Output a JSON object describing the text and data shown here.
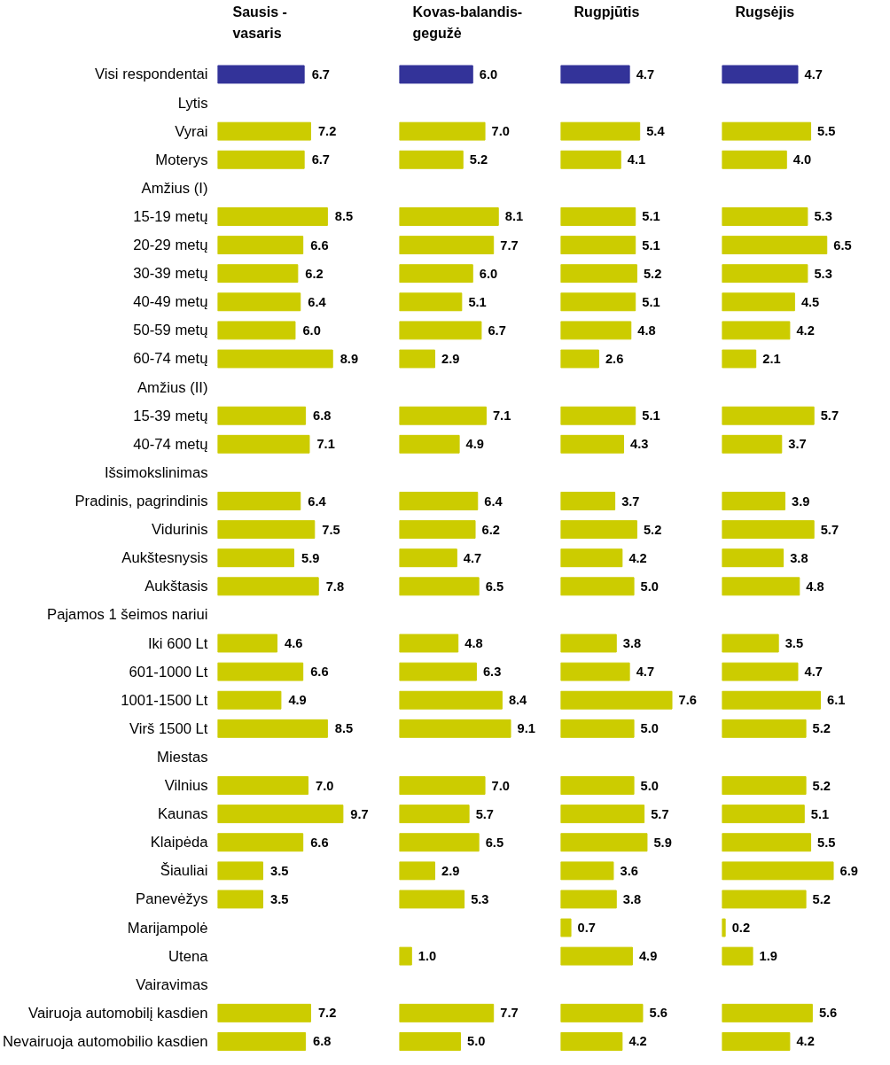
{
  "chart_data": [
    {
      "type": "bar",
      "orientation": "horizontal",
      "title": "Sausis -\nvasaris",
      "grid": false,
      "categories": [
        "Visi respondentai",
        "Lytis",
        "Vyrai",
        "Moterys",
        "Amžius (I)",
        "15-19 metų",
        "20-29 metų",
        "30-39 metų",
        "40-49 metų",
        "50-59 metų",
        "60-74 metų",
        "Amžius (II)",
        "15-39 metų",
        "40-74 metų",
        "Išsimokslinimas",
        "Pradinis, pagrindinis",
        "Vidurinis",
        "Aukštesnysis",
        "Aukštasis",
        "Pajamos 1 šeimos nariui",
        "Iki 600 Lt",
        "601-1000 Lt",
        "1001-1500 Lt",
        "Virš 1500 Lt",
        "Miestas",
        "Vilnius",
        "Kaunas",
        "Klaipėda",
        "Šiauliai",
        "Panevėžys",
        "Marijampolė",
        "Utena",
        "Vairavimas",
        "Vairuoja automobilį kasdien",
        "Nevairuoja automobilio kasdien"
      ],
      "values": [
        6.7,
        null,
        7.2,
        6.7,
        null,
        8.5,
        6.6,
        6.2,
        6.4,
        6.0,
        8.9,
        null,
        6.8,
        7.1,
        null,
        6.4,
        7.5,
        5.9,
        7.8,
        null,
        4.6,
        6.6,
        4.9,
        8.5,
        null,
        7.0,
        9.7,
        6.6,
        3.5,
        3.5,
        null,
        null,
        null,
        7.2,
        6.8
      ],
      "value_labels": [
        "6.7",
        null,
        "7.2",
        "6.7",
        null,
        "8.5",
        "6.6",
        "6.2",
        "6.4",
        "6.0",
        "8.9",
        null,
        "6.8",
        "7.1",
        null,
        "6.4",
        "7.5",
        "5.9",
        "7.8",
        null,
        "4.6",
        "6.6",
        "4.9",
        "8.5",
        null,
        "7.0",
        "9.7",
        "6.6",
        "3.5",
        "3.5",
        null,
        null,
        null,
        "7.2",
        "6.8"
      ],
      "colors": [
        "#333399",
        "#cccc00",
        "#cccc00",
        "#cccc00",
        "#cccc00",
        "#cccc00",
        "#cccc00",
        "#cccc00",
        "#cccc00",
        "#cccc00",
        "#cccc00",
        "#cccc00",
        "#cccc00",
        "#cccc00",
        "#cccc00",
        "#cccc00",
        "#cccc00",
        "#cccc00",
        "#cccc00",
        "#cccc00",
        "#cccc00",
        "#cccc00",
        "#cccc00",
        "#cccc00",
        "#cccc00",
        "#cccc00",
        "#cccc00",
        "#cccc00",
        "#cccc00",
        "#cccc00",
        "#cccc00",
        "#cccc00",
        "#cccc00",
        "#cccc00",
        "#cccc00"
      ]
    },
    {
      "type": "bar",
      "orientation": "horizontal",
      "title": "Kovas-balandis-\ngegužė",
      "grid": false,
      "tick_labels": false,
      "values": [
        6.0,
        null,
        7.0,
        5.2,
        null,
        8.1,
        7.7,
        6.0,
        5.1,
        6.7,
        2.9,
        null,
        7.1,
        4.9,
        null,
        6.4,
        6.2,
        4.7,
        6.5,
        null,
        4.8,
        6.3,
        8.4,
        9.1,
        null,
        7.0,
        5.7,
        6.5,
        2.9,
        5.3,
        null,
        1.0,
        null,
        7.7,
        5.0
      ],
      "value_labels": [
        "6.0",
        null,
        "7.0",
        "5.2",
        null,
        "8.1",
        "7.7",
        "6.0",
        "5.1",
        "6.7",
        "2.9",
        null,
        "7.1",
        "4.9",
        null,
        "6.4",
        "6.2",
        "4.7",
        "6.5",
        null,
        "4.8",
        "6.3",
        "8.4",
        "9.1",
        null,
        "7.0",
        "5.7",
        "6.5",
        "2.9",
        "5.3",
        null,
        "1.0",
        null,
        "7.7",
        "5.0"
      ],
      "colors": [
        "#333399",
        "#cccc00",
        "#cccc00",
        "#cccc00",
        "#cccc00",
        "#cccc00",
        "#cccc00",
        "#cccc00",
        "#cccc00",
        "#cccc00",
        "#cccc00",
        "#cccc00",
        "#cccc00",
        "#cccc00",
        "#cccc00",
        "#cccc00",
        "#cccc00",
        "#cccc00",
        "#cccc00",
        "#cccc00",
        "#cccc00",
        "#cccc00",
        "#cccc00",
        "#cccc00",
        "#cccc00",
        "#cccc00",
        "#cccc00",
        "#cccc00",
        "#cccc00",
        "#cccc00",
        "#cccc00",
        "#cccc00",
        "#cccc00",
        "#cccc00",
        "#cccc00"
      ]
    },
    {
      "type": "bar",
      "orientation": "horizontal",
      "title": "Rugpjūtis",
      "grid": false,
      "tick_labels": false,
      "values": [
        4.7,
        null,
        5.4,
        4.1,
        null,
        5.1,
        5.1,
        5.2,
        5.1,
        4.8,
        2.6,
        null,
        5.1,
        4.3,
        null,
        3.7,
        5.2,
        4.2,
        5.0,
        null,
        3.8,
        4.7,
        7.6,
        5.0,
        null,
        5.0,
        5.7,
        5.9,
        3.6,
        3.8,
        0.7,
        4.9,
        null,
        5.6,
        4.2
      ],
      "value_labels": [
        "4.7",
        null,
        "5.4",
        "4.1",
        null,
        "5.1",
        "5.1",
        "5.2",
        "5.1",
        "4.8",
        "2.6",
        null,
        "5.1",
        "4.3",
        null,
        "3.7",
        "5.2",
        "4.2",
        "5.0",
        null,
        "3.8",
        "4.7",
        "7.6",
        "5.0",
        null,
        "5.0",
        "5.7",
        "5.9",
        "3.6",
        "3.8",
        "0.7",
        "4.9",
        null,
        "5.6",
        "4.2"
      ],
      "colors": [
        "#333399",
        "#cccc00",
        "#cccc00",
        "#cccc00",
        "#cccc00",
        "#cccc00",
        "#cccc00",
        "#cccc00",
        "#cccc00",
        "#cccc00",
        "#cccc00",
        "#cccc00",
        "#cccc00",
        "#cccc00",
        "#cccc00",
        "#cccc00",
        "#cccc00",
        "#cccc00",
        "#cccc00",
        "#cccc00",
        "#cccc00",
        "#cccc00",
        "#cccc00",
        "#cccc00",
        "#cccc00",
        "#cccc00",
        "#cccc00",
        "#cccc00",
        "#cccc00",
        "#cccc00",
        "#cccc00",
        "#cccc00",
        "#cccc00",
        "#cccc00",
        "#cccc00"
      ]
    },
    {
      "type": "bar",
      "orientation": "horizontal",
      "title": "Rugsėjis",
      "grid": false,
      "tick_labels": false,
      "values": [
        4.7,
        null,
        5.5,
        4.0,
        null,
        5.3,
        6.5,
        5.3,
        4.5,
        4.2,
        2.1,
        null,
        5.7,
        3.7,
        null,
        3.9,
        5.7,
        3.8,
        4.8,
        null,
        3.5,
        4.7,
        6.1,
        5.2,
        null,
        5.2,
        5.1,
        5.5,
        6.9,
        5.2,
        0.2,
        1.9,
        null,
        5.6,
        4.2
      ],
      "value_labels": [
        "4.7",
        null,
        "5.5",
        "4.0",
        null,
        "5.3",
        "6.5",
        "5.3",
        "4.5",
        "4.2",
        "2.1",
        null,
        "5.7",
        "3.7",
        null,
        "3.9",
        "5.7",
        "3.8",
        "4.8",
        null,
        "3.5",
        "4.7",
        "6.1",
        "5.2",
        null,
        "5.2",
        "5.1",
        "5.5",
        "6.9",
        "5.2",
        "0.2",
        "1.9",
        null,
        "5.6",
        "4.2"
      ],
      "colors": [
        "#333399",
        "#cccc00",
        "#cccc00",
        "#cccc00",
        "#cccc00",
        "#cccc00",
        "#cccc00",
        "#cccc00",
        "#cccc00",
        "#cccc00",
        "#cccc00",
        "#cccc00",
        "#cccc00",
        "#cccc00",
        "#cccc00",
        "#cccc00",
        "#cccc00",
        "#cccc00",
        "#cccc00",
        "#cccc00",
        "#cccc00",
        "#cccc00",
        "#cccc00",
        "#cccc00",
        "#cccc00",
        "#cccc00",
        "#cccc00",
        "#cccc00",
        "#cccc00",
        "#cccc00",
        "#cccc00",
        "#cccc00",
        "#cccc00",
        "#cccc00",
        "#cccc00"
      ]
    }
  ]
}
